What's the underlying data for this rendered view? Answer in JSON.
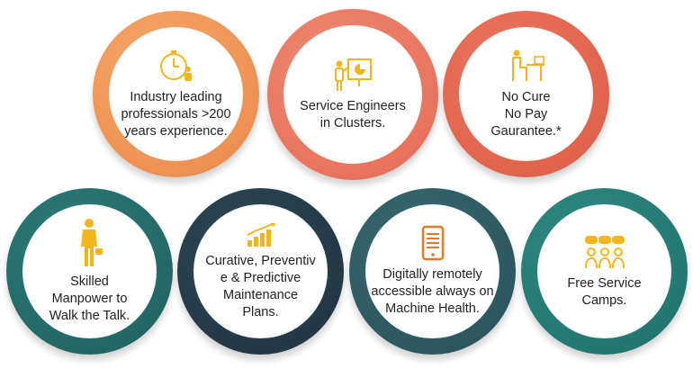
{
  "badges": [
    {
      "label": "Industry leading\nprofessionals >200\nyears experience.",
      "icon": "clock-person-icon"
    },
    {
      "label": "Service Engineers\nin Clusters.",
      "icon": "presenter-chart-icon"
    },
    {
      "label": "No Cure\nNo Pay\nGaurantee.*",
      "icon": "desk-worker-icon"
    },
    {
      "label": "Skilled\nManpower to\nWalk the Talk.",
      "icon": "businessman-icon"
    },
    {
      "label": "Curative, Preventiv\ne & Predictive\nMaintenance\nPlans.",
      "icon": "growth-chart-icon"
    },
    {
      "label": "Digitally remotely\naccessible always on\nMachine Health.",
      "icon": "smartphone-icon"
    },
    {
      "label": "Free Service\nCamps.",
      "icon": "group-chat-icon"
    }
  ],
  "colors": {
    "icon": "#f3b51a",
    "orange": "#e9874a",
    "salmon": "#e46a55",
    "coral": "#dc5b44",
    "teal_dark": "#1f5d5e",
    "navy": "#1f3340",
    "slate_teal": "#26505a",
    "teal": "#1e6f69"
  }
}
